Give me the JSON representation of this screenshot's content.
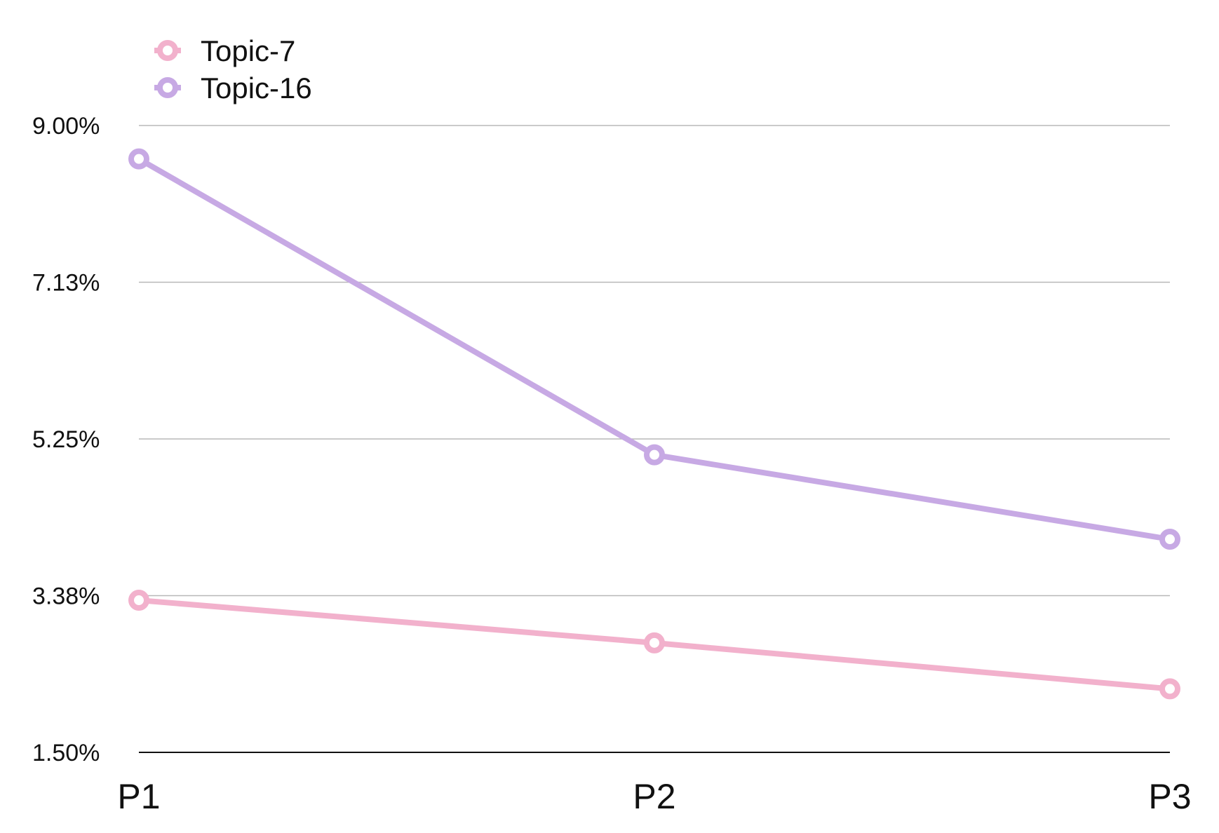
{
  "chart_data": {
    "type": "line",
    "categories": [
      "P1",
      "P2",
      "P3"
    ],
    "series": [
      {
        "name": "Topic-7",
        "values": [
          3.32,
          2.81,
          2.26
        ],
        "color": "#f2b1cc"
      },
      {
        "name": "Topic-16",
        "values": [
          8.6,
          5.06,
          4.05
        ],
        "color": "#c7a9e4"
      }
    ],
    "ylim": [
      1.5,
      9.0
    ],
    "yticks": [
      "1.50%",
      "3.38%",
      "5.25%",
      "7.13%",
      "9.00%"
    ],
    "ytick_values": [
      1.5,
      3.375,
      5.25,
      7.125,
      9.0
    ],
    "grid": true,
    "legend_position": "top-left",
    "title": "",
    "xlabel": "",
    "ylabel": ""
  }
}
